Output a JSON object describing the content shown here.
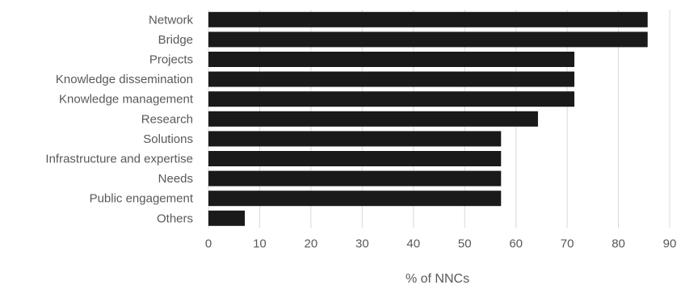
{
  "chart_data": {
    "type": "bar",
    "orientation": "horizontal",
    "categories": [
      "Network",
      "Bridge",
      "Projects",
      "Knowledge dissemination",
      "Knowledge management",
      "Research",
      "Solutions",
      "Infrastructure and expertise",
      "Needs",
      "Public engagement",
      "Others"
    ],
    "values": [
      85.7,
      85.7,
      71.4,
      71.4,
      71.4,
      64.3,
      57.1,
      57.1,
      57.1,
      57.1,
      7.1
    ],
    "xlabel": "% of NNCs",
    "ylabel": "",
    "xlim": [
      0,
      90
    ],
    "xticks": [
      0,
      10,
      20,
      30,
      40,
      50,
      60,
      70,
      80,
      90
    ],
    "grid": "vertical",
    "legend": "none",
    "bar_color": "#1a1a1a"
  }
}
